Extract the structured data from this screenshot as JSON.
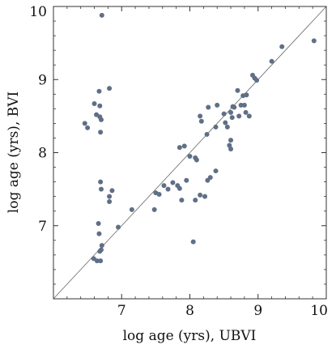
{
  "chart_data": {
    "type": "scatter",
    "xlabel": "log age (yrs), UBVI",
    "ylabel": "log age (yrs), BVI",
    "xlim": [
      6.0,
      10.0
    ],
    "ylim": [
      6.0,
      10.0
    ],
    "x_ticks": [
      7,
      8,
      9,
      10
    ],
    "x_tick_labels": [
      "7",
      "8",
      "9",
      "10"
    ],
    "y_ticks": [
      7,
      8,
      9,
      10
    ],
    "y_tick_labels": [
      "7",
      "8",
      "9",
      "10"
    ],
    "reference_line": "y = x",
    "grid": false,
    "point_color": "#5f6f86",
    "points": [
      [
        6.71,
        9.88
      ],
      [
        6.67,
        8.84
      ],
      [
        6.82,
        8.88
      ],
      [
        6.6,
        8.67
      ],
      [
        6.68,
        8.64
      ],
      [
        6.46,
        8.4
      ],
      [
        6.5,
        8.34
      ],
      [
        6.63,
        8.52
      ],
      [
        6.68,
        8.49
      ],
      [
        6.7,
        8.45
      ],
      [
        6.69,
        8.28
      ],
      [
        6.69,
        7.6
      ],
      [
        6.7,
        7.5
      ],
      [
        6.82,
        7.4
      ],
      [
        6.86,
        7.48
      ],
      [
        6.82,
        7.33
      ],
      [
        6.66,
        7.03
      ],
      [
        6.67,
        6.89
      ],
      [
        6.71,
        6.73
      ],
      [
        6.7,
        6.67
      ],
      [
        6.68,
        6.65
      ],
      [
        6.59,
        6.55
      ],
      [
        6.64,
        6.52
      ],
      [
        6.69,
        6.52
      ],
      [
        6.95,
        6.98
      ],
      [
        7.15,
        7.22
      ],
      [
        7.48,
        7.22
      ],
      [
        7.5,
        7.45
      ],
      [
        7.55,
        7.43
      ],
      [
        7.62,
        7.55
      ],
      [
        7.68,
        7.5
      ],
      [
        7.75,
        7.59
      ],
      [
        7.82,
        7.55
      ],
      [
        7.85,
        7.51
      ],
      [
        7.88,
        7.35
      ],
      [
        7.95,
        7.62
      ],
      [
        7.85,
        8.07
      ],
      [
        7.92,
        8.09
      ],
      [
        8.0,
        7.95
      ],
      [
        8.08,
        7.93
      ],
      [
        8.1,
        7.9
      ],
      [
        8.08,
        7.35
      ],
      [
        8.15,
        7.42
      ],
      [
        8.05,
        6.78
      ],
      [
        8.15,
        8.5
      ],
      [
        8.17,
        8.43
      ],
      [
        8.27,
        8.62
      ],
      [
        8.25,
        8.25
      ],
      [
        8.22,
        7.4
      ],
      [
        8.26,
        7.62
      ],
      [
        8.3,
        7.66
      ],
      [
        8.38,
        7.75
      ],
      [
        8.38,
        8.35
      ],
      [
        8.4,
        8.65
      ],
      [
        8.5,
        8.53
      ],
      [
        8.52,
        8.41
      ],
      [
        8.55,
        8.35
      ],
      [
        8.58,
        8.1
      ],
      [
        8.6,
        8.17
      ],
      [
        8.6,
        8.05
      ],
      [
        8.62,
        8.48
      ],
      [
        8.65,
        8.62
      ],
      [
        8.7,
        8.85
      ],
      [
        8.72,
        8.5
      ],
      [
        8.75,
        8.65
      ],
      [
        8.78,
        8.78
      ],
      [
        8.8,
        8.65
      ],
      [
        8.82,
        8.55
      ],
      [
        8.83,
        8.79
      ],
      [
        8.87,
        8.5
      ],
      [
        8.6,
        8.55
      ],
      [
        8.63,
        8.63
      ],
      [
        8.92,
        9.06
      ],
      [
        8.95,
        9.02
      ],
      [
        8.98,
        8.99
      ],
      [
        9.2,
        9.25
      ],
      [
        9.35,
        9.45
      ],
      [
        9.82,
        9.53
      ]
    ]
  }
}
